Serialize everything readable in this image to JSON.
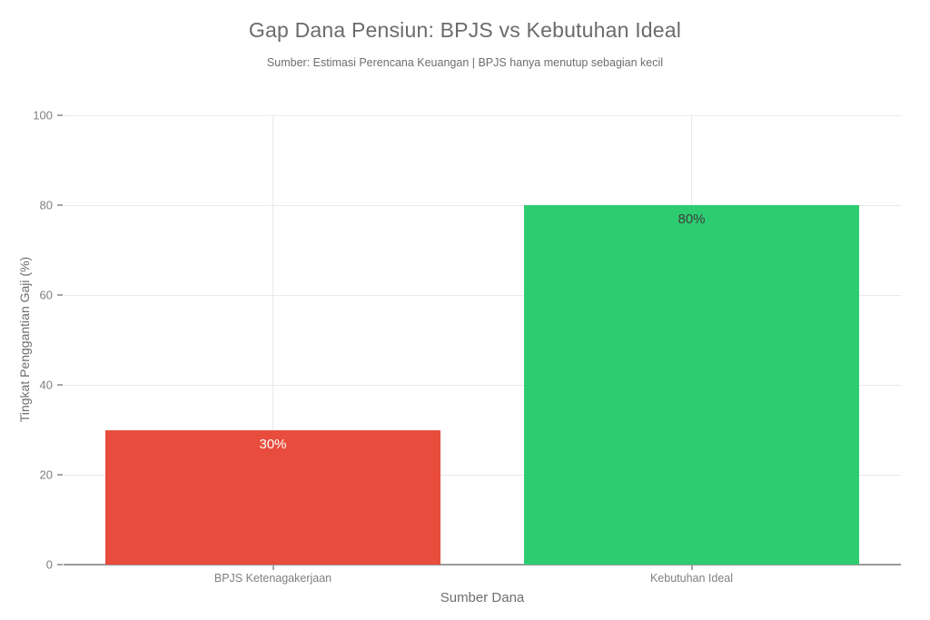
{
  "chart_data": {
    "type": "bar",
    "title": "Gap Dana Pensiun: BPJS vs Kebutuhan Ideal",
    "subtitle": "Sumber: Estimasi Perencana Keuangan | BPJS hanya menutup sebagian kecil",
    "xlabel": "Sumber Dana",
    "ylabel": "Tingkat Penggantian Gaji (%)",
    "categories": [
      "BPJS Ketenagakerjaan",
      "Kebutuhan Ideal"
    ],
    "values": [
      30,
      80
    ],
    "bar_labels": [
      "30%",
      "80%"
    ],
    "bar_colors": [
      "#e74c3c",
      "#2ecc71"
    ],
    "bar_label_colors": [
      "#ffffff",
      "#3d3d3d"
    ],
    "ylim": [
      0,
      100
    ],
    "yticks": [
      0,
      20,
      40,
      60,
      80,
      100
    ],
    "grid": true,
    "legend_position": "none",
    "colors": {
      "grid": "#e9e9e9",
      "zero_line": "#9b9b9b",
      "tick_mark": "#a6a6a6",
      "tick_text": "#7f7f7f",
      "title_text": "#6b6b6b",
      "axis_title_text": "#6e6e6e",
      "plot_background": "#ffffff"
    }
  }
}
